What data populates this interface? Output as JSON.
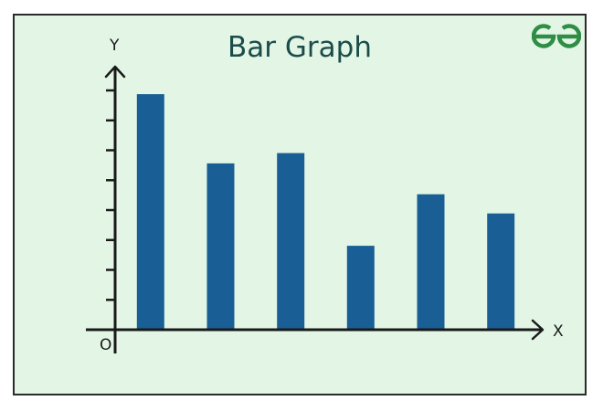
{
  "chart_data": {
    "type": "bar",
    "title": "Bar Graph",
    "xlabel": "X",
    "ylabel": "Y",
    "origin_label": "O",
    "categories": [
      "",
      "",
      "",
      "",
      "",
      ""
    ],
    "values": [
      8,
      5.65,
      6,
      2.85,
      4.6,
      3.95
    ],
    "ylim": [
      0,
      8.5
    ],
    "ytick_count": 8,
    "bar_color": "#195f96",
    "grid": false,
    "legend": "none"
  },
  "brand": {
    "logo_icon": "geeksforgeeks-logo-icon",
    "logo_color": "#2f8d46"
  },
  "colors": {
    "background": "#e3f6e6",
    "axis": "#1a1a1a",
    "title": "#1c4c4a"
  }
}
